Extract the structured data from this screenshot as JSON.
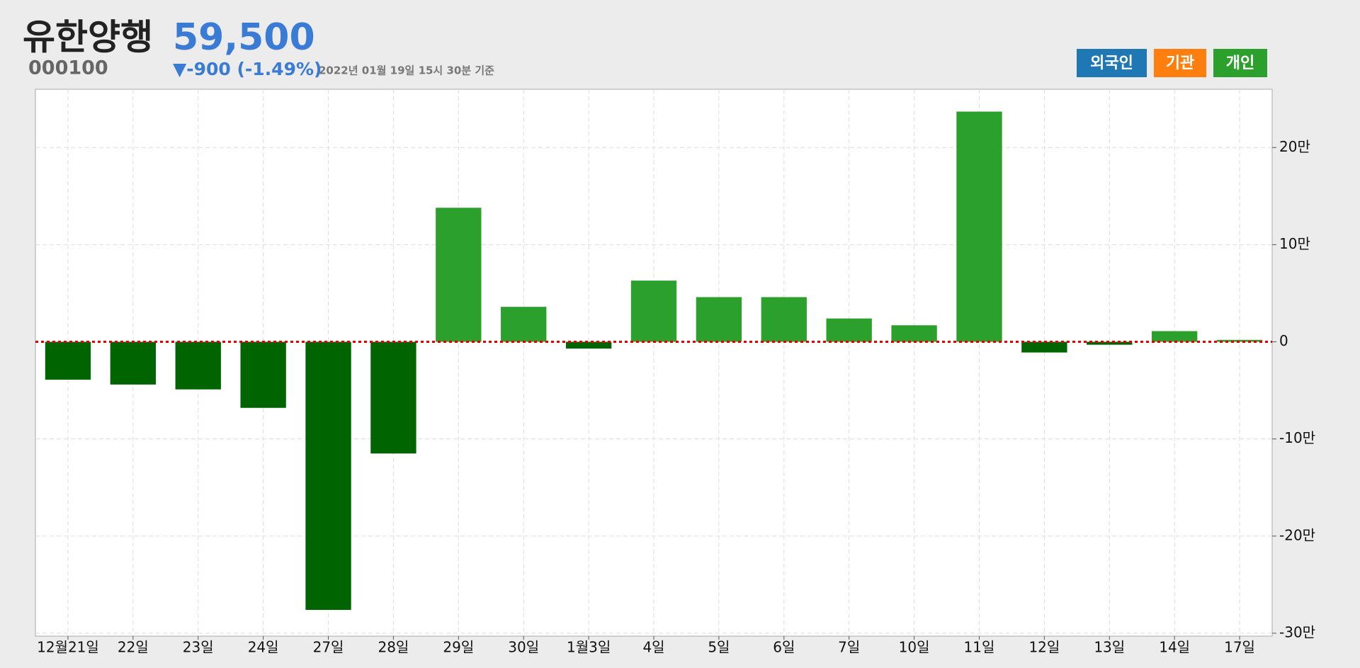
{
  "header": {
    "title": "유한양행",
    "code": "000100",
    "price": "59,500",
    "change": "▼-900 (-1.49%)",
    "timestamp": "2022년 01월 19일 15시 30분 기준"
  },
  "buttons": [
    {
      "label": "외국인",
      "color": "#1f77b4"
    },
    {
      "label": "기관",
      "color": "#ff7f0e"
    },
    {
      "label": "개인",
      "color": "#2ca02c"
    }
  ],
  "chart_data": {
    "type": "bar",
    "categories": [
      "12월21일",
      "22일",
      "23일",
      "24일",
      "27일",
      "28일",
      "29일",
      "30일",
      "1월3일",
      "4일",
      "5일",
      "6일",
      "7일",
      "10일",
      "11일",
      "12일",
      "13일",
      "14일",
      "17일"
    ],
    "values": [
      -3.9,
      -4.4,
      -4.9,
      -6.8,
      -27.6,
      -11.5,
      13.8,
      3.6,
      -0.7,
      6.3,
      4.6,
      4.6,
      2.4,
      1.7,
      23.7,
      -1.1,
      -0.3,
      1.1,
      0.2
    ],
    "color": "#2ca02c",
    "negative_color": "#006400",
    "zero_line_color": "#e00000",
    "ylim": [
      -30.3,
      26
    ],
    "yticks": [
      {
        "value": 20,
        "label": "20만"
      },
      {
        "value": 10,
        "label": "10만"
      },
      0,
      {
        "value": -10,
        "label": "-10만"
      },
      {
        "value": -20,
        "label": "-20만"
      },
      {
        "value": -30,
        "label": "-30만"
      }
    ],
    "grid": true
  }
}
